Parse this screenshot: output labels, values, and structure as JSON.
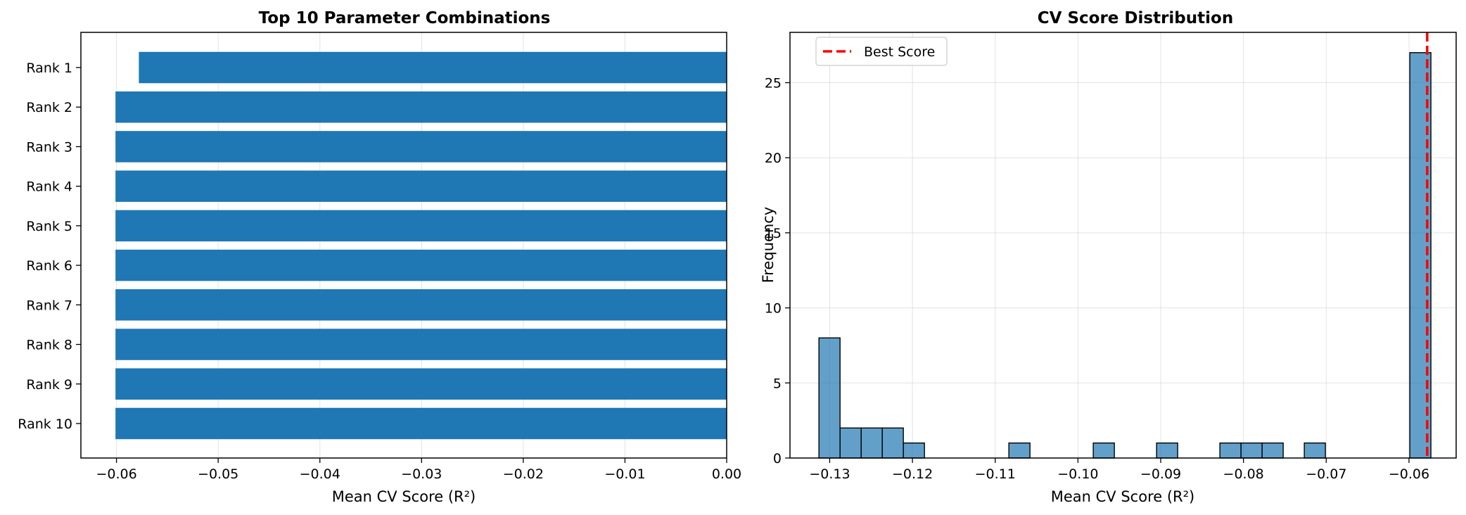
{
  "chart_data": [
    {
      "type": "bar",
      "orientation": "horizontal",
      "title": "Top 10 Parameter Combinations",
      "xlabel": "Mean CV Score (R²)",
      "ylabel": "",
      "categories": [
        "Rank 1",
        "Rank 2",
        "Rank 3",
        "Rank 4",
        "Rank 5",
        "Rank 6",
        "Rank 7",
        "Rank 8",
        "Rank 9",
        "Rank 10"
      ],
      "values": [
        -0.0578,
        -0.0601,
        -0.0601,
        -0.0601,
        -0.0601,
        -0.0601,
        -0.0601,
        -0.0601,
        -0.0601,
        -0.0601
      ],
      "xlim": [
        -0.0635,
        0.0
      ],
      "xticks": [
        -0.06,
        -0.05,
        -0.04,
        -0.03,
        -0.02,
        -0.01,
        0.0
      ],
      "xtick_labels": [
        "−0.06",
        "−0.05",
        "−0.04",
        "−0.03",
        "−0.02",
        "−0.01",
        "0.00"
      ],
      "grid": true,
      "bar_color": "#1f77b4"
    },
    {
      "type": "histogram",
      "title": "CV Score Distribution",
      "xlabel": "Mean CV Score (R²)",
      "ylabel": "Frequency",
      "bin_start": -0.1313,
      "bin_width": 0.00255,
      "counts": [
        8,
        2,
        2,
        2,
        1,
        0,
        0,
        0,
        0,
        1,
        0,
        0,
        0,
        1,
        0,
        0,
        1,
        0,
        0,
        1,
        1,
        1,
        0,
        1,
        0,
        0,
        0,
        0,
        27
      ],
      "xlim": [
        -0.1348,
        -0.0543
      ],
      "ylim": [
        0,
        28.35
      ],
      "xticks": [
        -0.13,
        -0.12,
        -0.11,
        -0.1,
        -0.09,
        -0.08,
        -0.07,
        -0.06
      ],
      "xtick_labels": [
        "−0.13",
        "−0.12",
        "−0.11",
        "−0.10",
        "−0.09",
        "−0.08",
        "−0.07",
        "−0.06"
      ],
      "yticks": [
        0,
        5,
        10,
        15,
        20,
        25
      ],
      "ytick_labels": [
        "0",
        "5",
        "10",
        "15",
        "20",
        "25"
      ],
      "best_score": -0.0578,
      "legend": {
        "label": "Best Score",
        "placement": "upper-left"
      },
      "grid": true,
      "bar_color": "#1f77b4",
      "line_color": "#ff0000"
    }
  ]
}
